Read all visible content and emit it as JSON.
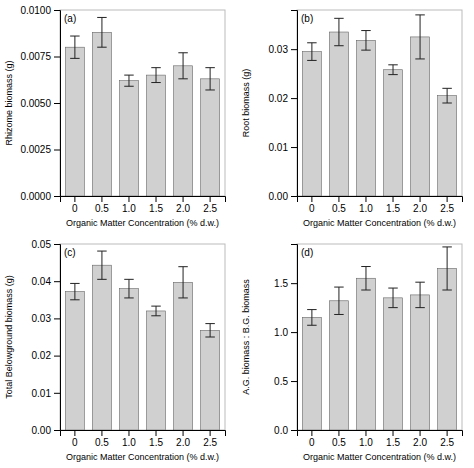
{
  "chart_data": [
    {
      "type": "bar",
      "annotations": [
        "(a)"
      ],
      "xlabel": "Organic Matter Concentration (% d.w.)",
      "ylabel": "Rhizome biomass (g)",
      "categories": [
        "0",
        "0.5",
        "1.0",
        "1.5",
        "2.0",
        "2.5"
      ],
      "values": [
        0.008,
        0.0088,
        0.0062,
        0.0065,
        0.007,
        0.0063
      ],
      "errors": [
        0.0006,
        0.0008,
        0.0003,
        0.0004,
        0.0007,
        0.0006
      ],
      "color": "#D0D0D0",
      "ylim": [
        0,
        0.01
      ],
      "yticks": [
        {
          "value": 0,
          "label": "0.0000"
        },
        0.0025,
        {
          "value": 0.005,
          "label": "0.0050"
        },
        0.0075,
        {
          "value": 0.01,
          "label": "0.0100"
        }
      ],
      "grid": false
    },
    {
      "type": "bar",
      "annotations": [
        "(b)"
      ],
      "xlabel": "Organic Matter Concentration (% d.w.)",
      "ylabel": "Root biomass (g)",
      "categories": [
        "0",
        "0.5",
        "1.0",
        "1.5",
        "2.0",
        "2.5"
      ],
      "values": [
        0.0295,
        0.0335,
        0.0318,
        0.0258,
        0.0325,
        0.0205
      ],
      "errors": [
        0.0018,
        0.0028,
        0.002,
        0.001,
        0.0045,
        0.0015
      ],
      "color": "#D0D0D0",
      "ylim": [
        0,
        0.038
      ],
      "yticks": [
        {
          "value": 0,
          "label": "0.00"
        },
        0.01,
        0.02,
        0.03
      ],
      "grid": false
    },
    {
      "type": "bar",
      "annotations": [
        "(c)"
      ],
      "xlabel": "Organic Matter Concentration (% d.w.)",
      "ylabel": "Total Belowground biomass (g)",
      "categories": [
        "0",
        "0.5",
        "1.0",
        "1.5",
        "2.0",
        "2.5"
      ],
      "values": [
        0.0372,
        0.0443,
        0.038,
        0.032,
        0.0397,
        0.0268
      ],
      "errors": [
        0.0022,
        0.0038,
        0.0025,
        0.0013,
        0.0042,
        0.0018
      ],
      "color": "#D0D0D0",
      "ylim": [
        0,
        0.05
      ],
      "yticks": [
        {
          "value": 0,
          "label": "0.00"
        },
        0.01,
        0.02,
        0.03,
        0.04,
        0.05
      ],
      "grid": false
    },
    {
      "type": "bar",
      "annotations": [
        "(d)"
      ],
      "xlabel": "Organic Matter Concentration (% d.w.)",
      "ylabel": "A.G. biomass : B.G. biomass",
      "categories": [
        "0",
        "0.5",
        "1.0",
        "1.5",
        "2.0",
        "2.5"
      ],
      "values": [
        1.15,
        1.32,
        1.55,
        1.35,
        1.38,
        1.65
      ],
      "errors": [
        0.08,
        0.14,
        0.12,
        0.1,
        0.13,
        0.22
      ],
      "color": "#D0D0D0",
      "ylim": [
        0,
        1.9
      ],
      "yticks": [
        {
          "value": 0,
          "label": "0.0"
        },
        0.5,
        {
          "value": 1,
          "label": "1.0"
        },
        1.5
      ],
      "grid": false
    }
  ]
}
